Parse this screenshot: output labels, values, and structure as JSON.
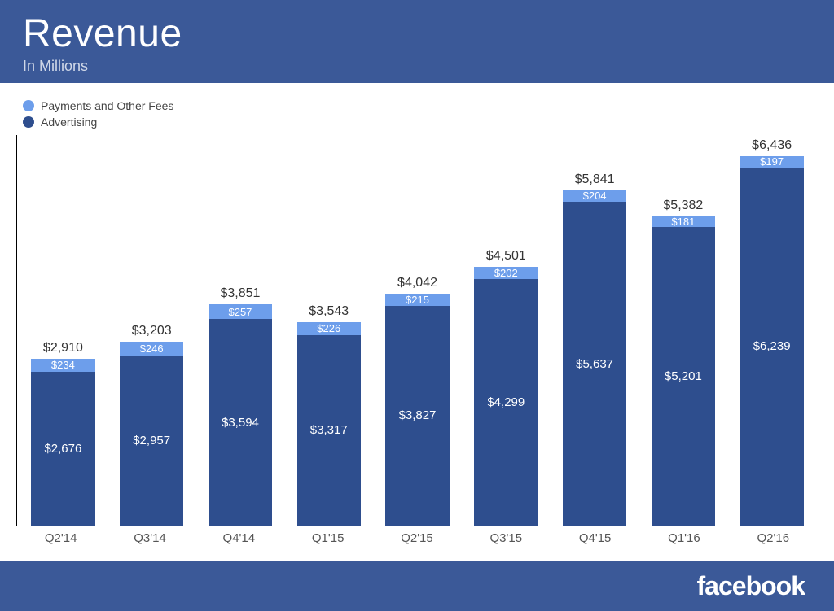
{
  "header": {
    "title": "Revenue",
    "subtitle": "In Millions",
    "bg_color": "#3b5998",
    "title_color": "#ffffff",
    "subtitle_color": "#d0d8e8"
  },
  "legend": {
    "items": [
      {
        "label": "Payments and Other Fees",
        "color": "#6d9eeb"
      },
      {
        "label": "Advertising",
        "color": "#2e4e8e"
      }
    ]
  },
  "chart": {
    "type": "stacked-bar",
    "y_max": 6800,
    "bar_width_pct": 72,
    "categories": [
      "Q2'14",
      "Q3'14",
      "Q4'14",
      "Q1'15",
      "Q2'15",
      "Q3'15",
      "Q4'15",
      "Q1'16",
      "Q2'16"
    ],
    "series": {
      "advertising": {
        "color": "#2e4e8e",
        "text_color": "#ffffff",
        "values": [
          2676,
          2957,
          3594,
          3317,
          3827,
          4299,
          5637,
          5201,
          6239
        ],
        "labels": [
          "$2,676",
          "$2,957",
          "$3,594",
          "$3,317",
          "$3,827",
          "$4,299",
          "$5,637",
          "$5,201",
          "$6,239"
        ]
      },
      "payments": {
        "color": "#6d9eeb",
        "text_color": "#ffffff",
        "values": [
          234,
          246,
          257,
          226,
          215,
          202,
          204,
          181,
          197
        ],
        "labels": [
          "$234",
          "$246",
          "$257",
          "$226",
          "$215",
          "$202",
          "$204",
          "$181",
          "$197"
        ]
      }
    },
    "totals": {
      "values": [
        2910,
        3203,
        3851,
        3543,
        4042,
        4501,
        5841,
        5382,
        6436
      ],
      "labels": [
        "$2,910",
        "$3,203",
        "$3,851",
        "$3,543",
        "$4,042",
        "$4,501",
        "$5,841",
        "$5,382",
        "$6,436"
      ],
      "color": "#333333"
    },
    "axis_color": "#000000",
    "background_color": "#ffffff",
    "total_fontsize": 16,
    "seg_fontsize": 15,
    "payments_fontsize": 13,
    "xtick_fontsize": 15
  },
  "footer": {
    "logo_text": "facebook",
    "bg_color": "#3b5998",
    "logo_color": "#ffffff"
  }
}
